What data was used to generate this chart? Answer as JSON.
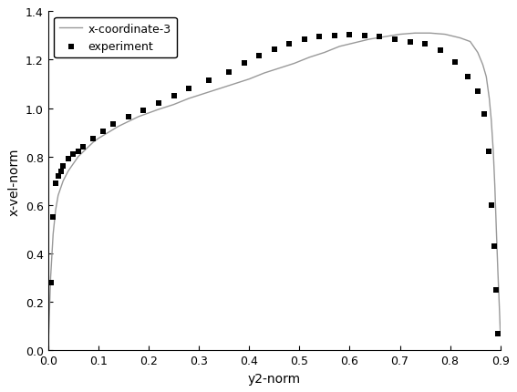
{
  "title": "",
  "xlabel": "y2-norm",
  "ylabel": "x-vel-norm",
  "xlim": [
    0.0,
    0.9
  ],
  "ylim": [
    0.0,
    1.4
  ],
  "xticks": [
    0.0,
    0.1,
    0.2,
    0.3,
    0.4,
    0.5,
    0.6,
    0.7,
    0.8,
    0.9
  ],
  "yticks": [
    0.0,
    0.2,
    0.4,
    0.6,
    0.8,
    1.0,
    1.2,
    1.4
  ],
  "legend_line_label": "x-coordinate-3",
  "legend_scatter_label": "experiment",
  "line_color": "#999999",
  "scatter_color": "#000000",
  "background_color": "#ffffff",
  "curve_x": [
    0.0,
    0.005,
    0.01,
    0.015,
    0.02,
    0.03,
    0.04,
    0.05,
    0.06,
    0.07,
    0.08,
    0.09,
    0.1,
    0.12,
    0.14,
    0.16,
    0.18,
    0.2,
    0.22,
    0.25,
    0.28,
    0.31,
    0.34,
    0.37,
    0.4,
    0.43,
    0.46,
    0.49,
    0.52,
    0.55,
    0.58,
    0.61,
    0.64,
    0.67,
    0.7,
    0.73,
    0.76,
    0.79,
    0.82,
    0.84,
    0.855,
    0.865,
    0.872,
    0.878,
    0.882,
    0.886,
    0.889,
    0.892,
    0.895,
    0.898,
    0.9
  ],
  "curve_y": [
    0.0,
    0.3,
    0.48,
    0.58,
    0.64,
    0.7,
    0.74,
    0.77,
    0.8,
    0.82,
    0.84,
    0.86,
    0.875,
    0.9,
    0.925,
    0.945,
    0.965,
    0.98,
    0.995,
    1.015,
    1.04,
    1.06,
    1.08,
    1.1,
    1.12,
    1.145,
    1.165,
    1.185,
    1.21,
    1.23,
    1.255,
    1.27,
    1.285,
    1.295,
    1.305,
    1.31,
    1.31,
    1.305,
    1.29,
    1.275,
    1.23,
    1.18,
    1.13,
    1.04,
    0.95,
    0.82,
    0.68,
    0.5,
    0.33,
    0.18,
    0.07
  ],
  "scatter_x": [
    0.005,
    0.01,
    0.015,
    0.02,
    0.025,
    0.03,
    0.04,
    0.05,
    0.06,
    0.07,
    0.09,
    0.11,
    0.13,
    0.16,
    0.19,
    0.22,
    0.25,
    0.28,
    0.32,
    0.36,
    0.39,
    0.42,
    0.45,
    0.48,
    0.51,
    0.54,
    0.57,
    0.6,
    0.63,
    0.66,
    0.69,
    0.72,
    0.75,
    0.78,
    0.81,
    0.835,
    0.855,
    0.868,
    0.876,
    0.882,
    0.887,
    0.891,
    0.895
  ],
  "scatter_y": [
    0.28,
    0.55,
    0.69,
    0.72,
    0.74,
    0.76,
    0.79,
    0.81,
    0.82,
    0.84,
    0.875,
    0.905,
    0.935,
    0.965,
    0.99,
    1.02,
    1.05,
    1.08,
    1.115,
    1.15,
    1.185,
    1.215,
    1.245,
    1.265,
    1.285,
    1.295,
    1.3,
    1.305,
    1.3,
    1.295,
    1.285,
    1.275,
    1.265,
    1.24,
    1.19,
    1.13,
    1.07,
    0.975,
    0.82,
    0.6,
    0.43,
    0.25,
    0.07
  ],
  "figsize": [
    5.67,
    4.31
  ],
  "dpi": 100
}
